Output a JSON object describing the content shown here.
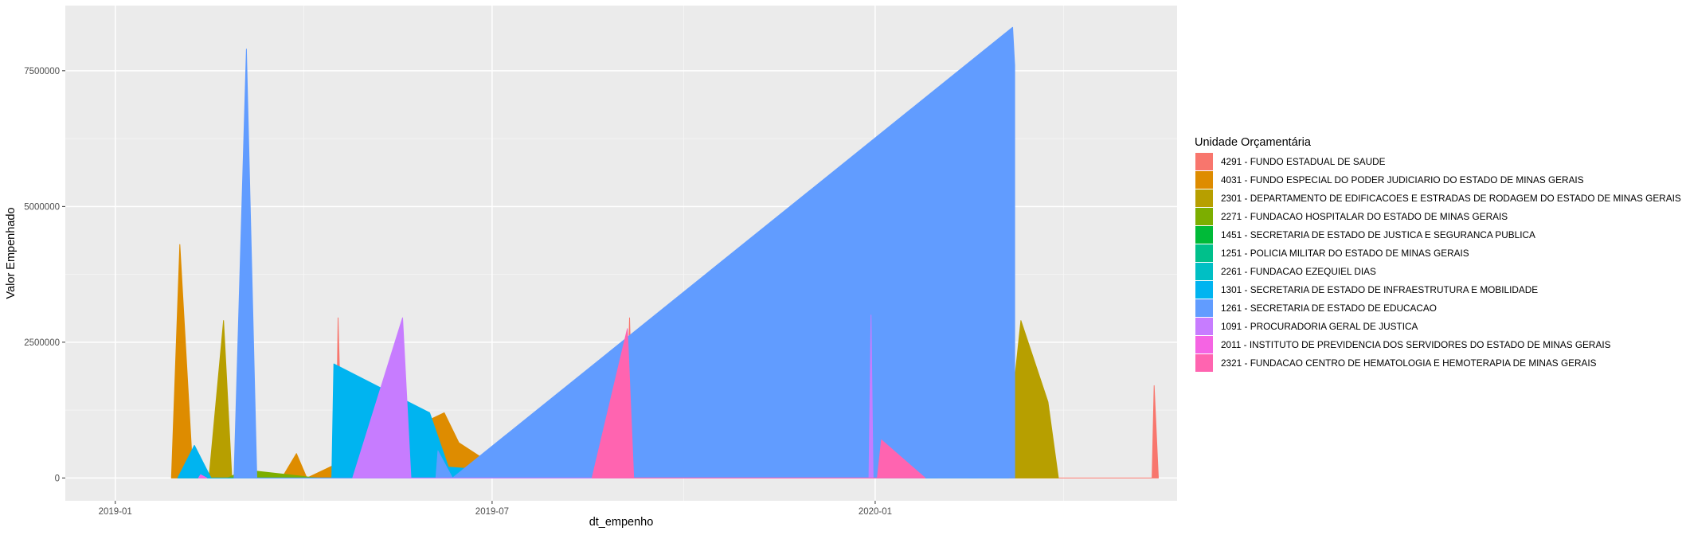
{
  "chart_data": {
    "type": "area",
    "title": "",
    "xlabel": "dt_empenho",
    "ylabel": "Valor Empenhado",
    "x_ticks": [
      "2019-01",
      "2019-07",
      "2020-01"
    ],
    "y_ticks": [
      "0",
      "2500000",
      "5000000",
      "7500000"
    ],
    "xlim": [
      "2018-12-08",
      "2020-05-25"
    ],
    "ylim": [
      -420000,
      8700000
    ],
    "grid": true,
    "legend_title": "Unidade Orçamentária",
    "legend_position": "right",
    "series": [
      {
        "name": "4291 - FUNDO ESTADUAL DE SAUDE",
        "color": "#F8766D",
        "points": [
          [
            "2019-02-28",
            0
          ],
          [
            "2019-03-01",
            2400000
          ],
          [
            "2019-03-03",
            0
          ],
          [
            "2019-04-17",
            0
          ],
          [
            "2019-04-18",
            2950000
          ],
          [
            "2019-04-20",
            0
          ],
          [
            "2019-09-03",
            0
          ],
          [
            "2019-09-05",
            2950000
          ],
          [
            "2019-09-07",
            0
          ],
          [
            "2019-11-25",
            0
          ],
          [
            "2019-11-27",
            3150000
          ],
          [
            "2019-11-30",
            0
          ],
          [
            "2020-01-27",
            1650000
          ],
          [
            "2020-02-08",
            1350000
          ],
          [
            "2020-02-10",
            0
          ],
          [
            "2020-05-13",
            0
          ],
          [
            "2020-05-14",
            1700000
          ],
          [
            "2020-05-16",
            0
          ]
        ]
      },
      {
        "name": "4031 - FUNDO ESPECIAL DO PODER JUDICIARIO DO ESTADO DE MINAS GERAIS",
        "color": "#DE8C00",
        "points": [
          [
            "2019-01-28",
            0
          ],
          [
            "2019-02-01",
            4300000
          ],
          [
            "2019-02-07",
            250000
          ],
          [
            "2019-02-12",
            0
          ],
          [
            "2019-03-22",
            0
          ],
          [
            "2019-03-29",
            450000
          ],
          [
            "2019-04-03",
            0
          ],
          [
            "2019-06-08",
            1200000
          ],
          [
            "2019-06-15",
            650000
          ],
          [
            "2019-06-29",
            300000
          ],
          [
            "2019-07-01",
            0
          ]
        ]
      },
      {
        "name": "2301 - DEPARTAMENTO DE EDIFICACOES E ESTRADAS DE RODAGEM DO ESTADO DE MINAS GERAIS",
        "color": "#B79F00",
        "points": [
          [
            "2019-02-15",
            0
          ],
          [
            "2019-02-22",
            2900000
          ],
          [
            "2019-02-26",
            0
          ],
          [
            "2019-06-27",
            0
          ],
          [
            "2019-07-05",
            700000
          ],
          [
            "2019-07-09",
            0
          ],
          [
            "2020-03-03",
            0
          ],
          [
            "2020-03-11",
            2900000
          ],
          [
            "2020-03-24",
            1400000
          ],
          [
            "2020-03-29",
            0
          ]
        ]
      },
      {
        "name": "2271 - FUNDACAO HOSPITALAR DO ESTADO DE MINAS GERAIS",
        "color": "#7CAE00",
        "points": [
          [
            "2019-02-24",
            0
          ],
          [
            "2019-03-04",
            150000
          ],
          [
            "2019-04-08",
            0
          ]
        ]
      },
      {
        "name": "1451 - SECRETARIA DE ESTADO DE JUSTICA E SEGURANCA PUBLICA",
        "color": "#00BA38",
        "points": [
          [
            "2019-12-30",
            0
          ],
          [
            "2020-01-04",
            6250000
          ],
          [
            "2020-01-31",
            0
          ]
        ]
      },
      {
        "name": "1251 - POLICIA MILITAR DO ESTADO DE MINAS GERAIS",
        "color": "#00C08B",
        "points": [
          [
            "2019-07-20",
            0
          ],
          [
            "2019-07-21",
            150000
          ],
          [
            "2019-07-23",
            0
          ]
        ]
      },
      {
        "name": "2261 - FUNDACAO EZEQUIEL DIAS",
        "color": "#00BFC4",
        "points": [
          [
            "2020-02-15",
            0
          ],
          [
            "2020-02-17",
            100000
          ],
          [
            "2020-02-19",
            0
          ]
        ]
      },
      {
        "name": "1301 - SECRETARIA DE ESTADO DE INFRAESTRUTURA E MOBILIDADE",
        "color": "#00B4F0",
        "points": [
          [
            "2019-01-31",
            0
          ],
          [
            "2019-02-08",
            600000
          ],
          [
            "2019-02-16",
            0
          ],
          [
            "2019-04-15",
            0
          ],
          [
            "2019-04-16",
            2100000
          ],
          [
            "2019-06-01",
            1200000
          ],
          [
            "2019-06-10",
            200000
          ],
          [
            "2019-07-15",
            100000
          ],
          [
            "2019-08-27",
            650000
          ],
          [
            "2019-09-08",
            1950000
          ],
          [
            "2019-12-20",
            250000
          ],
          [
            "2019-12-23",
            0
          ],
          [
            "2020-02-20",
            0
          ],
          [
            "2020-02-28",
            300000
          ],
          [
            "2020-03-05",
            0
          ]
        ]
      },
      {
        "name": "1261 - SECRETARIA DE ESTADO DE EDUCACAO",
        "color": "#619CFF",
        "points": [
          [
            "2019-02-27",
            0
          ],
          [
            "2019-03-05",
            7900000
          ],
          [
            "2019-03-10",
            0
          ],
          [
            "2019-06-04",
            0
          ],
          [
            "2019-06-05",
            500000
          ],
          [
            "2019-06-12",
            0
          ],
          [
            "2020-03-07",
            8300000
          ],
          [
            "2020-03-08",
            7600000
          ]
        ]
      },
      {
        "name": "1091 - PROCURADORIA GERAL DE JUSTICA",
        "color": "#C77CFF",
        "points": [
          [
            "2019-04-25",
            0
          ],
          [
            "2019-05-19",
            2950000
          ],
          [
            "2019-05-23",
            0
          ],
          [
            "2019-12-29",
            0
          ],
          [
            "2019-12-30",
            3000000
          ],
          [
            "2019-12-31",
            0
          ]
        ]
      },
      {
        "name": "2011 - INSTITUTO DE PREVIDENCIA DOS SERVIDORES DO ESTADO DE MINAS GERAIS",
        "color": "#F564E3",
        "points": [
          [
            "2019-02-10",
            0
          ],
          [
            "2019-02-11",
            60000
          ],
          [
            "2019-02-14",
            0
          ]
        ]
      },
      {
        "name": "2321 - FUNDACAO CENTRO DE HEMATOLOGIA E HEMOTERAPIA DE MINAS GERAIS",
        "color": "#FF64B0",
        "points": [
          [
            "2019-08-18",
            0
          ],
          [
            "2019-09-04",
            2750000
          ],
          [
            "2019-09-07",
            0
          ],
          [
            "2020-01-02",
            0
          ],
          [
            "2020-01-04",
            700000
          ],
          [
            "2020-01-25",
            0
          ]
        ]
      }
    ]
  }
}
